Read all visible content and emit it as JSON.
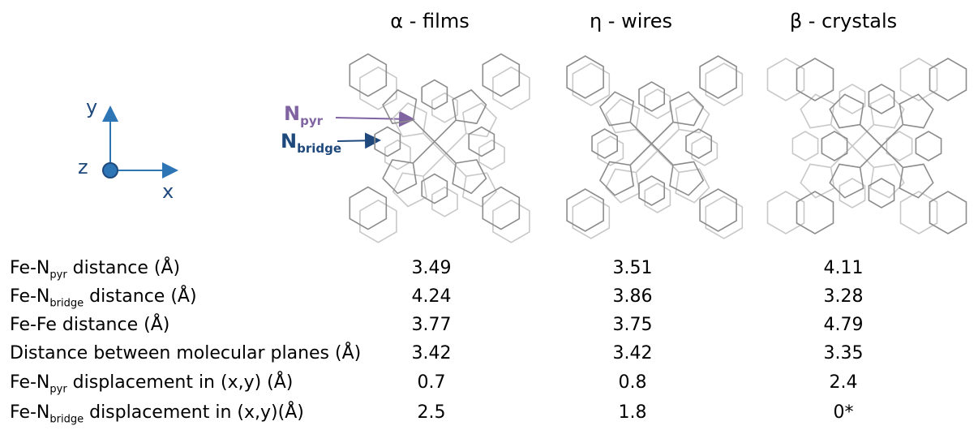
{
  "phases": [
    {
      "title": "α - films"
    },
    {
      "title": "η - wires"
    },
    {
      "title": "β - crystals"
    }
  ],
  "axes": {
    "x": "x",
    "y": "y",
    "z": "z"
  },
  "markers": {
    "npyr": {
      "base": "N",
      "sub": "pyr",
      "color": "#8064a2"
    },
    "nbridge": {
      "base": "N",
      "sub": "bridge",
      "color": "#1f497d"
    }
  },
  "colors": {
    "axis": "#2e75b6",
    "molecule": "#8c8c8c",
    "molecule_faint": "#c8c8c8"
  },
  "table": {
    "rows": [
      {
        "pre": "Fe-N",
        "sub": "pyr",
        "post": " distance (Å)",
        "values": [
          "3.49",
          "3.51",
          "4.11"
        ]
      },
      {
        "pre": "Fe-N",
        "sub": "bridge",
        "post": " distance (Å)",
        "values": [
          "4.24",
          "3.86",
          "3.28"
        ]
      },
      {
        "pre": "Fe-Fe distance (Å)",
        "sub": "",
        "post": "",
        "values": [
          "3.77",
          "3.75",
          "4.79"
        ]
      },
      {
        "pre": "Distance between molecular planes (Å)",
        "sub": "",
        "post": "",
        "values": [
          "3.42",
          "3.42",
          "3.35"
        ]
      },
      {
        "pre": "Fe-N",
        "sub": "pyr",
        "post": " displacement in (x,y) (Å)",
        "values": [
          "0.7",
          "0.8",
          "2.4"
        ]
      },
      {
        "pre": "Fe-N",
        "sub": "bridge",
        "post": " displacement in (x,y)(Å)",
        "values": [
          "2.5",
          "1.8",
          "0*"
        ]
      }
    ]
  }
}
